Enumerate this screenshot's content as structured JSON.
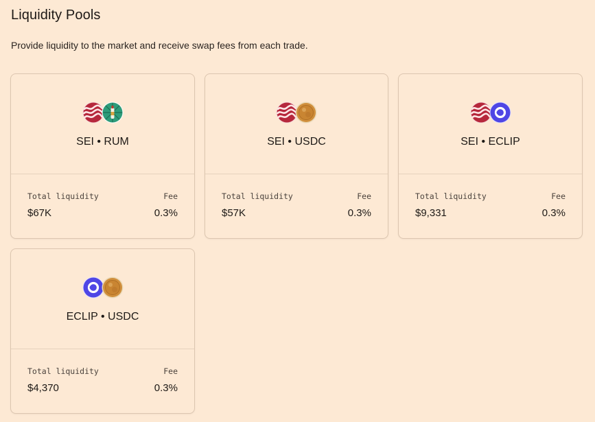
{
  "page": {
    "title": "Liquidity Pools",
    "subtitle": "Provide liquidity to the market and receive swap fees from each trade."
  },
  "labels": {
    "total_liquidity": "Total liquidity",
    "fee": "Fee"
  },
  "pools": [
    {
      "pair": "SEI • RUM",
      "token_a": "sei-token-icon",
      "token_b": "rum-token-icon",
      "total_liquidity": "$67K",
      "fee": "0.3%"
    },
    {
      "pair": "SEI • USDC",
      "token_a": "sei-token-icon",
      "token_b": "usdc-token-icon",
      "total_liquidity": "$57K",
      "fee": "0.3%"
    },
    {
      "pair": "SEI • ECLIP",
      "token_a": "sei-token-icon",
      "token_b": "eclip-token-icon",
      "total_liquidity": "$9,331",
      "fee": "0.3%"
    },
    {
      "pair": "ECLIP • USDC",
      "token_a": "eclip-token-icon",
      "token_b": "usdc-token-icon",
      "total_liquidity": "$4,370",
      "fee": "0.3%"
    }
  ],
  "colors": {
    "background": "#fde9d4",
    "card_border": "#dcc6b0",
    "sei": "#b6283c",
    "eclip": "#4f46e5",
    "usdc_coin": "#d08f3c",
    "rum": "#2e9c7a"
  }
}
